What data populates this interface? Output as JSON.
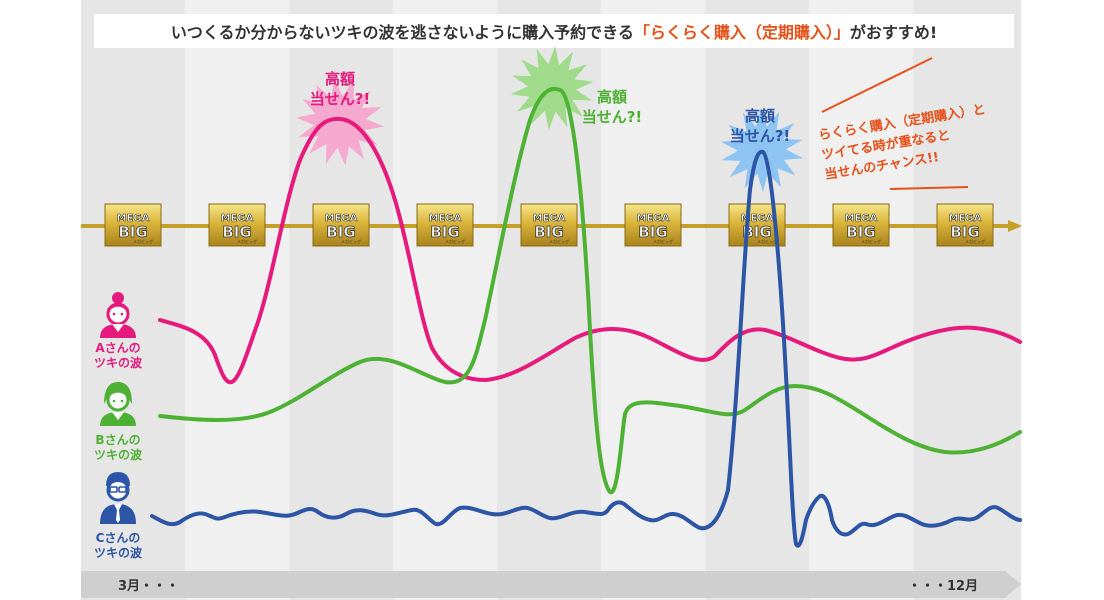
{
  "header": {
    "text_main": "いつくるか分からないツキの波を逃さないように購入予約できる",
    "text_highlight": "「らくらく購入（定期購入）」",
    "text_tail": "がおすすめ!"
  },
  "lottery": {
    "logo_top": "MEGA",
    "logo_bottom": "BIG",
    "logo_sub": "メガビッグ",
    "count": 9
  },
  "people": [
    {
      "name": "Aさんの",
      "sub": "ツキの波",
      "color": "#e6197c",
      "icon": "woman-bun-icon"
    },
    {
      "name": "Bさんの",
      "sub": "ツキの波",
      "color": "#4db234",
      "icon": "woman-short-hair-icon"
    },
    {
      "name": "Cさんの",
      "sub": "ツキの波",
      "color": "#2d55a6",
      "icon": "man-glasses-icon"
    }
  ],
  "bursts": [
    {
      "line1": "高額",
      "line2": "当せん?!",
      "color": "#e6197c",
      "burst_color": "#f6a9cf"
    },
    {
      "line1": "高額",
      "line2": "当せん?!",
      "color": "#4db234",
      "burst_color": "#9fdb8b"
    },
    {
      "line1": "高額",
      "line2": "当せん?!",
      "color": "#2d55a6",
      "burst_color": "#8ec4f2"
    }
  ],
  "note": {
    "line1": "らくらく購入（定期購入）と",
    "line2": "ツイてる時が重なると",
    "line3": "当せんのチャンス!!",
    "color": "#e8501a"
  },
  "timeline": {
    "start_label": "3月・・・",
    "end_label": "・・・12月"
  },
  "colors": {
    "pink": "#e6197c",
    "green": "#4db234",
    "blue": "#2d55a6",
    "gold": "#c5a028",
    "orange": "#e8501a"
  }
}
